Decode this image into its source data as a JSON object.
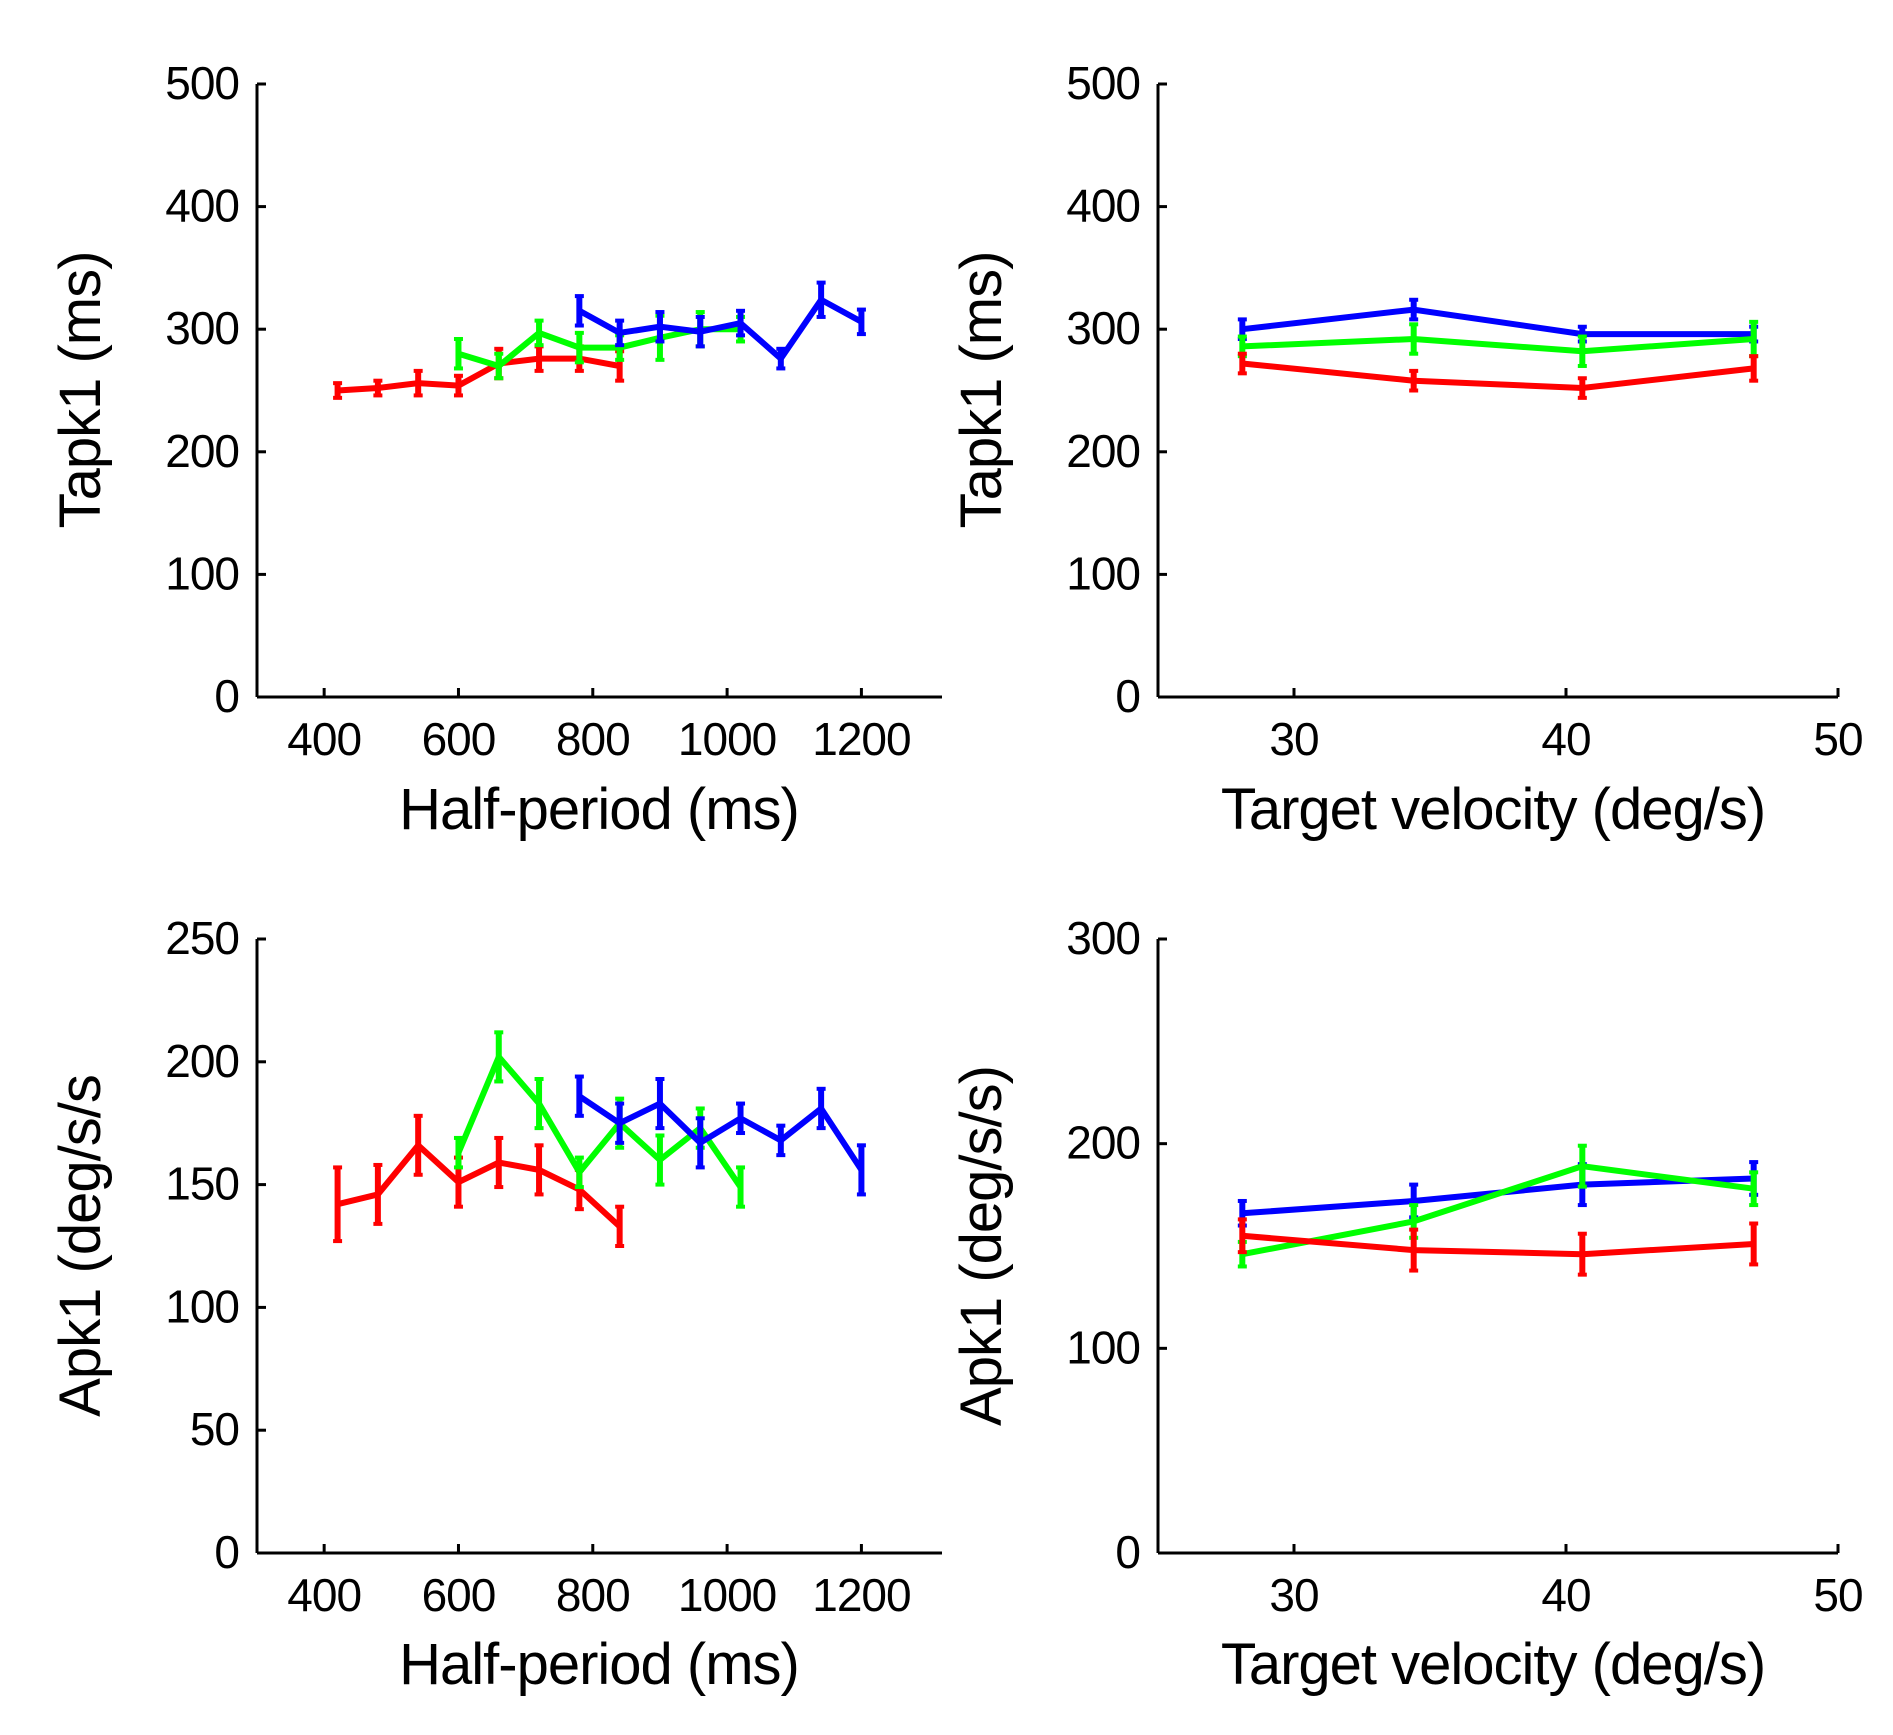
{
  "chart_data": [
    {
      "type": "line",
      "panel": "top-left",
      "title": "",
      "xlabel": "Half-period (ms)",
      "ylabel": "Tapk1 (ms)",
      "xlim": [
        300,
        1320
      ],
      "ylim": [
        0,
        500
      ],
      "xticks": [
        400,
        600,
        800,
        1000,
        1200
      ],
      "xtick_labels": [
        "400",
        "600",
        "800",
        "1000",
        "1200"
      ],
      "yticks": [
        0,
        100,
        200,
        300,
        400,
        500
      ],
      "ytick_labels": [
        "0",
        "100",
        "200",
        "300",
        "400",
        "500"
      ],
      "series": [
        {
          "name": "red",
          "color": "#ff0000",
          "x": [
            420,
            480,
            540,
            600,
            660,
            720,
            780,
            840
          ],
          "y": [
            250,
            252,
            256,
            254,
            272,
            276,
            276,
            270
          ],
          "err": [
            6,
            6,
            10,
            8,
            12,
            10,
            10,
            12
          ]
        },
        {
          "name": "green",
          "color": "#00ff00",
          "x": [
            600,
            660,
            720,
            780,
            840,
            900,
            960,
            1020
          ],
          "y": [
            280,
            270,
            297,
            285,
            285,
            293,
            300,
            300
          ],
          "err": [
            12,
            10,
            10,
            12,
            10,
            18,
            14,
            10
          ]
        },
        {
          "name": "blue",
          "color": "#0000ff",
          "x": [
            780,
            840,
            900,
            960,
            1020,
            1080,
            1140,
            1200
          ],
          "y": [
            315,
            297,
            302,
            298,
            305,
            276,
            324,
            306
          ],
          "err": [
            12,
            10,
            12,
            12,
            10,
            8,
            14,
            10
          ]
        }
      ]
    },
    {
      "type": "line",
      "panel": "top-right",
      "title": "",
      "xlabel": "Target velocity (deg/s)",
      "ylabel": "Tapk1 (ms)",
      "xlim": [
        25,
        50
      ],
      "ylim": [
        0,
        500
      ],
      "xticks": [
        30,
        40,
        50
      ],
      "xtick_labels": [
        "30",
        "40",
        "50"
      ],
      "yticks": [
        0,
        100,
        200,
        300,
        400,
        500
      ],
      "ytick_labels": [
        "0",
        "100",
        "200",
        "300",
        "400",
        "500"
      ],
      "series": [
        {
          "name": "blue",
          "color": "#0000ff",
          "x": [
            28.1,
            34.4,
            40.6,
            46.9
          ],
          "y": [
            300,
            316,
            296,
            296
          ],
          "err": [
            8,
            8,
            6,
            6
          ]
        },
        {
          "name": "green",
          "color": "#00ff00",
          "x": [
            28.1,
            34.4,
            40.6,
            46.9
          ],
          "y": [
            286,
            292,
            282,
            292
          ],
          "err": [
            8,
            12,
            12,
            14
          ]
        },
        {
          "name": "red",
          "color": "#ff0000",
          "x": [
            28.1,
            34.4,
            40.6,
            46.9
          ],
          "y": [
            272,
            258,
            252,
            268
          ],
          "err": [
            8,
            8,
            8,
            10
          ]
        }
      ]
    },
    {
      "type": "line",
      "panel": "bottom-left",
      "title": "",
      "xlabel": "Half-period (ms)",
      "ylabel": "Apk1 (deg/s/s",
      "xlim": [
        300,
        1320
      ],
      "ylim": [
        0,
        250
      ],
      "xticks": [
        400,
        600,
        800,
        1000,
        1200
      ],
      "xtick_labels": [
        "400",
        "600",
        "800",
        "1000",
        "1200"
      ],
      "yticks": [
        0,
        50,
        100,
        150,
        200,
        250
      ],
      "ytick_labels": [
        "0",
        "50",
        "100",
        "150",
        "200",
        "250"
      ],
      "series": [
        {
          "name": "red",
          "color": "#ff0000",
          "x": [
            420,
            480,
            540,
            600,
            660,
            720,
            780,
            840
          ],
          "y": [
            142,
            146,
            166,
            151,
            159,
            156,
            148,
            133
          ],
          "err": [
            15,
            12,
            12,
            10,
            10,
            10,
            8,
            8
          ]
        },
        {
          "name": "green",
          "color": "#00ff00",
          "x": [
            600,
            660,
            720,
            780,
            840,
            900,
            960,
            1020
          ],
          "y": [
            163,
            202,
            183,
            155,
            175,
            160,
            173,
            149
          ],
          "err": [
            6,
            10,
            10,
            6,
            10,
            10,
            8,
            8
          ]
        },
        {
          "name": "blue",
          "color": "#0000ff",
          "x": [
            780,
            840,
            900,
            960,
            1020,
            1080,
            1140,
            1200
          ],
          "y": [
            186,
            175,
            183,
            167,
            177,
            168,
            181,
            156
          ],
          "err": [
            8,
            8,
            10,
            10,
            6,
            6,
            8,
            10
          ]
        }
      ]
    },
    {
      "type": "line",
      "panel": "bottom-right",
      "title": "",
      "xlabel": "Target velocity (deg/s)",
      "ylabel": "Apk1 (deg/s/s)",
      "xlim": [
        25,
        50
      ],
      "ylim": [
        0,
        300
      ],
      "xticks": [
        30,
        40,
        50
      ],
      "xtick_labels": [
        "30",
        "40",
        "50"
      ],
      "yticks": [
        0,
        100,
        200,
        300
      ],
      "ytick_labels": [
        "0",
        "100",
        "200",
        "300"
      ],
      "series": [
        {
          "name": "blue",
          "color": "#0000ff",
          "x": [
            28.1,
            34.4,
            40.6,
            46.9
          ],
          "y": [
            166,
            172,
            180,
            183
          ],
          "err": [
            6,
            8,
            10,
            8
          ]
        },
        {
          "name": "green",
          "color": "#00ff00",
          "x": [
            28.1,
            34.4,
            40.6,
            46.9
          ],
          "y": [
            146,
            162,
            189,
            178
          ],
          "err": [
            6,
            8,
            10,
            8
          ]
        },
        {
          "name": "red",
          "color": "#ff0000",
          "x": [
            28.1,
            34.4,
            40.6,
            46.9
          ],
          "y": [
            155,
            148,
            146,
            151
          ],
          "err": [
            8,
            10,
            10,
            10
          ]
        }
      ]
    }
  ]
}
